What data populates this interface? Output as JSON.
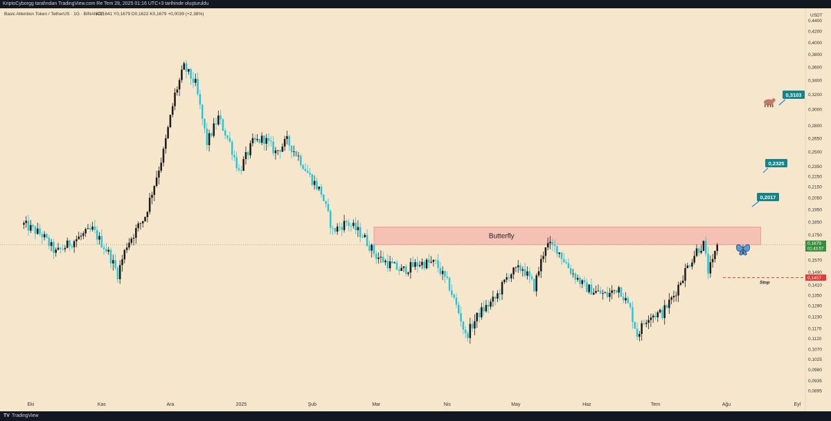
{
  "header": {
    "text": "KriptoCyborgg tarafından TradingView.com Re Tem 28, 2025 01:16 UTC+3 tarihinde oluşturuldu"
  },
  "footer": {
    "logo": "TV",
    "brand": "TradingView"
  },
  "colors": {
    "background": "#f5e6cc",
    "up_candle": "#1a1a1a",
    "down_candle": "#26c6da",
    "zone_fill": "#f4a3a3",
    "target_label": "#14838a",
    "price_label": "#388e3c",
    "stop_label": "#e53935"
  },
  "chart_data": {
    "type": "candlestick",
    "title": "Basic Attention Token / TetherUS · 1G · BINANCE",
    "ohlc_header": "A0,1641  Y0,1679  D0,1622  K0,1679  +0,0039 (+2,38%)",
    "currency": "USDT",
    "y_scale": "log",
    "ylim": [
      0.0865,
      0.453
    ],
    "y_ticks": [
      "0,4400",
      "0,4200",
      "0,4000",
      "0,3800",
      "0,3600",
      "0,3400",
      "0,3200",
      "0,3000",
      "0,2800",
      "0,2650",
      "0,2500",
      "0,2350",
      "0,2250",
      "0,2150",
      "0,2050",
      "0,1950",
      "0,1850",
      "0,1750",
      "0,1650",
      "0,1570",
      "0,1490",
      "0,1410",
      "0,1350",
      "0,1290",
      "0,1230",
      "0,1170",
      "0,1120",
      "0,1070",
      "0,1025",
      "0,0980",
      "0,0935",
      "0,0895"
    ],
    "x_labels": [
      "Eki",
      "Kas",
      "Ara",
      "2025",
      "Şub",
      "Mar",
      "Nis",
      "May",
      "Haz",
      "Tem",
      "Ağu",
      "Eyl"
    ],
    "price_path": [
      {
        "date": "2024-09-28",
        "price": 0.183
      },
      {
        "date": "2024-10-06",
        "price": 0.175
      },
      {
        "date": "2024-10-12",
        "price": 0.162
      },
      {
        "date": "2024-10-20",
        "price": 0.171
      },
      {
        "date": "2024-10-28",
        "price": 0.179
      },
      {
        "date": "2024-11-04",
        "price": 0.162
      },
      {
        "date": "2024-11-08",
        "price": 0.148
      },
      {
        "date": "2024-11-12",
        "price": 0.168
      },
      {
        "date": "2024-11-20",
        "price": 0.19
      },
      {
        "date": "2024-11-28",
        "price": 0.25
      },
      {
        "date": "2024-12-03",
        "price": 0.32
      },
      {
        "date": "2024-12-07",
        "price": 0.36
      },
      {
        "date": "2024-12-12",
        "price": 0.335
      },
      {
        "date": "2024-12-17",
        "price": 0.26
      },
      {
        "date": "2024-12-22",
        "price": 0.29
      },
      {
        "date": "2024-12-27",
        "price": 0.26
      },
      {
        "date": "2024-12-31",
        "price": 0.23
      },
      {
        "date": "2025-01-06",
        "price": 0.26
      },
      {
        "date": "2025-01-11",
        "price": 0.265
      },
      {
        "date": "2025-01-16",
        "price": 0.25
      },
      {
        "date": "2025-01-21",
        "price": 0.262
      },
      {
        "date": "2025-01-26",
        "price": 0.245
      },
      {
        "date": "2025-01-31",
        "price": 0.225
      },
      {
        "date": "2025-02-05",
        "price": 0.21
      },
      {
        "date": "2025-02-10",
        "price": 0.178
      },
      {
        "date": "2025-02-16",
        "price": 0.185
      },
      {
        "date": "2025-02-23",
        "price": 0.175
      },
      {
        "date": "2025-03-01",
        "price": 0.16
      },
      {
        "date": "2025-03-06",
        "price": 0.155
      },
      {
        "date": "2025-03-12",
        "price": 0.15
      },
      {
        "date": "2025-03-20",
        "price": 0.155
      },
      {
        "date": "2025-03-27",
        "price": 0.155
      },
      {
        "date": "2025-04-02",
        "price": 0.14
      },
      {
        "date": "2025-04-07",
        "price": 0.122
      },
      {
        "date": "2025-04-09",
        "price": 0.113
      },
      {
        "date": "2025-04-15",
        "price": 0.125
      },
      {
        "date": "2025-04-22",
        "price": 0.133
      },
      {
        "date": "2025-04-28",
        "price": 0.148
      },
      {
        "date": "2025-05-04",
        "price": 0.152
      },
      {
        "date": "2025-05-09",
        "price": 0.14
      },
      {
        "date": "2025-05-14",
        "price": 0.168
      },
      {
        "date": "2025-05-19",
        "price": 0.165
      },
      {
        "date": "2025-05-25",
        "price": 0.15
      },
      {
        "date": "2025-05-31",
        "price": 0.14
      },
      {
        "date": "2025-06-05",
        "price": 0.137
      },
      {
        "date": "2025-06-10",
        "price": 0.135
      },
      {
        "date": "2025-06-15",
        "price": 0.14
      },
      {
        "date": "2025-06-20",
        "price": 0.127
      },
      {
        "date": "2025-06-23",
        "price": 0.114
      },
      {
        "date": "2025-06-28",
        "price": 0.124
      },
      {
        "date": "2025-07-04",
        "price": 0.125
      },
      {
        "date": "2025-07-09",
        "price": 0.135
      },
      {
        "date": "2025-07-14",
        "price": 0.15
      },
      {
        "date": "2025-07-19",
        "price": 0.164
      },
      {
        "date": "2025-07-22",
        "price": 0.168
      },
      {
        "date": "2025-07-24",
        "price": 0.15
      },
      {
        "date": "2025-07-26",
        "price": 0.155
      },
      {
        "date": "2025-07-28",
        "price": 0.1679
      }
    ],
    "annotations": {
      "zone": {
        "label": "Butterfly",
        "from_date": "2025-02-28",
        "to_date": "2025-08-16",
        "low": 0.1679,
        "high": 0.1812
      },
      "targets": [
        "0,2017",
        "0,2325",
        "0,3103"
      ],
      "stop": {
        "label": "Stop",
        "price_label": "0,1457"
      },
      "current_price": {
        "price_label": "0,1679",
        "countdown": "01:43:57"
      }
    }
  }
}
